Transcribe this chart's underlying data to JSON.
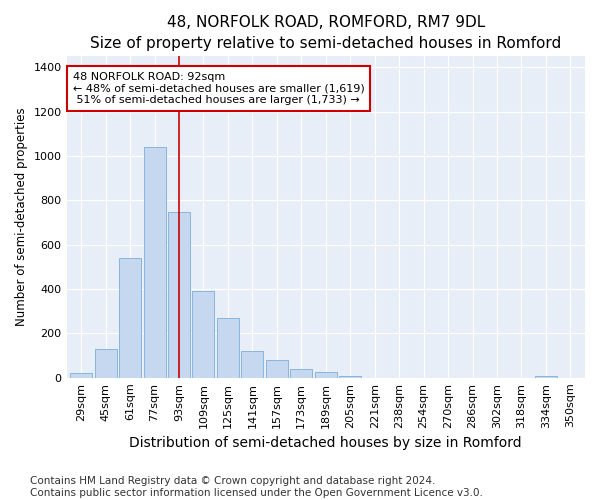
{
  "title": "48, NORFOLK ROAD, ROMFORD, RM7 9DL",
  "subtitle": "Size of property relative to semi-detached houses in Romford",
  "xlabel": "Distribution of semi-detached houses by size in Romford",
  "ylabel": "Number of semi-detached properties",
  "categories": [
    "29sqm",
    "45sqm",
    "61sqm",
    "77sqm",
    "93sqm",
    "109sqm",
    "125sqm",
    "141sqm",
    "157sqm",
    "173sqm",
    "189sqm",
    "205sqm",
    "221sqm",
    "238sqm",
    "254sqm",
    "270sqm",
    "286sqm",
    "302sqm",
    "318sqm",
    "334sqm",
    "350sqm"
  ],
  "values": [
    22,
    130,
    540,
    1040,
    750,
    390,
    270,
    120,
    80,
    40,
    25,
    10,
    0,
    0,
    0,
    0,
    0,
    0,
    0,
    10,
    0
  ],
  "bar_color": "#c5d8f0",
  "bar_edge_color": "#7aaed6",
  "highlight_index": 4,
  "highlight_line_color": "#cc0000",
  "annotation_text": "48 NORFOLK ROAD: 92sqm\n← 48% of semi-detached houses are smaller (1,619)\n 51% of semi-detached houses are larger (1,733) →",
  "annotation_box_color": "#ffffff",
  "annotation_box_edge": "#cc0000",
  "footer_line1": "Contains HM Land Registry data © Crown copyright and database right 2024.",
  "footer_line2": "Contains public sector information licensed under the Open Government Licence v3.0.",
  "ylim": [
    0,
    1450
  ],
  "yticks": [
    0,
    200,
    400,
    600,
    800,
    1000,
    1200,
    1400
  ],
  "title_fontsize": 11,
  "subtitle_fontsize": 9.5,
  "xlabel_fontsize": 10,
  "ylabel_fontsize": 8.5,
  "tick_fontsize": 8,
  "footer_fontsize": 7.5,
  "bg_color": "#ffffff",
  "plot_bg_color": "#e8eef8"
}
